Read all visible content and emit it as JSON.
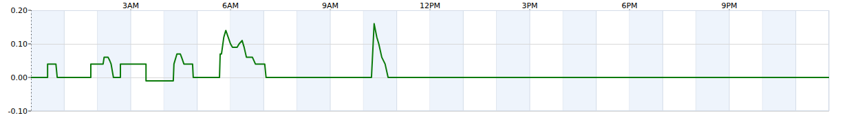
{
  "chart_data": {
    "type": "line",
    "x": [
      0,
      0.5,
      0.5,
      0.75,
      0.79,
      1.8,
      1.8,
      2.17,
      2.2,
      2.32,
      2.37,
      2.41,
      2.48,
      2.69,
      2.69,
      3.46,
      3.46,
      4.28,
      4.3,
      4.39,
      4.49,
      4.53,
      4.6,
      4.86,
      4.88,
      5.67,
      5.69,
      5.73,
      5.8,
      5.86,
      5.93,
      6.0,
      6.06,
      6.2,
      6.26,
      6.35,
      6.41,
      6.48,
      6.66,
      6.75,
      7.03,
      7.07,
      10.24,
      10.28,
      10.32,
      10.4,
      10.46,
      10.55,
      10.65,
      10.74,
      24
    ],
    "values": [
      0,
      0,
      0.04,
      0.04,
      0,
      0,
      0.04,
      0.04,
      0.06,
      0.06,
      0.05,
      0.04,
      0,
      0,
      0.04,
      0.04,
      -0.01,
      -0.01,
      0.04,
      0.07,
      0.07,
      0.06,
      0.04,
      0.04,
      0,
      0,
      0.07,
      0.07,
      0.12,
      0.14,
      0.12,
      0.1,
      0.09,
      0.09,
      0.1,
      0.11,
      0.09,
      0.06,
      0.06,
      0.04,
      0.04,
      0,
      0,
      0.08,
      0.16,
      0.12,
      0.1,
      0.06,
      0.04,
      0,
      0
    ],
    "color": "#0a7a0a",
    "xlim": [
      0,
      24
    ],
    "xticks": [
      {
        "value": 3,
        "label": "3AM"
      },
      {
        "value": 6,
        "label": "6AM"
      },
      {
        "value": 9,
        "label": "9AM"
      },
      {
        "value": 12,
        "label": "12PM"
      },
      {
        "value": 15,
        "label": "3PM"
      },
      {
        "value": 18,
        "label": "6PM"
      },
      {
        "value": 21,
        "label": "9PM"
      }
    ],
    "ylim": [
      -0.1,
      0.2
    ],
    "yticks": [
      {
        "value": 0.2,
        "label": "0.20"
      },
      {
        "value": 0.1,
        "label": "0.10"
      },
      {
        "value": 0,
        "label": "0.00"
      },
      {
        "value": -0.1,
        "label": "-0.10"
      }
    ],
    "grid": true
  }
}
